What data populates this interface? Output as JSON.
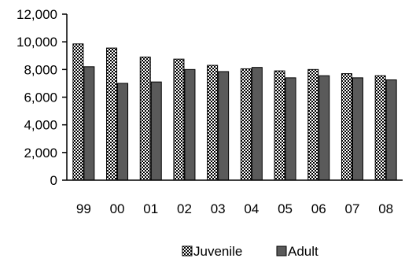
{
  "chart_data": {
    "type": "bar",
    "categories": [
      "99",
      "00",
      "01",
      "02",
      "03",
      "04",
      "05",
      "06",
      "07",
      "08"
    ],
    "series": [
      {
        "name": "Juvenile",
        "values": [
          9850,
          9550,
          8900,
          8750,
          8300,
          8050,
          7900,
          8000,
          7700,
          7550
        ],
        "pattern": "checkered",
        "color": "#ffffff"
      },
      {
        "name": "Adult",
        "values": [
          8200,
          7000,
          7100,
          8000,
          7850,
          8150,
          7400,
          7550,
          7400,
          7250
        ],
        "pattern": "solid",
        "color": "#5a5a5a"
      }
    ],
    "yticks": [
      "0",
      "2,000",
      "4,000",
      "6,000",
      "8,000",
      "10,000",
      "12,000"
    ],
    "ylim": [
      0,
      12000
    ],
    "grid": false,
    "legend_position": "bottom"
  }
}
